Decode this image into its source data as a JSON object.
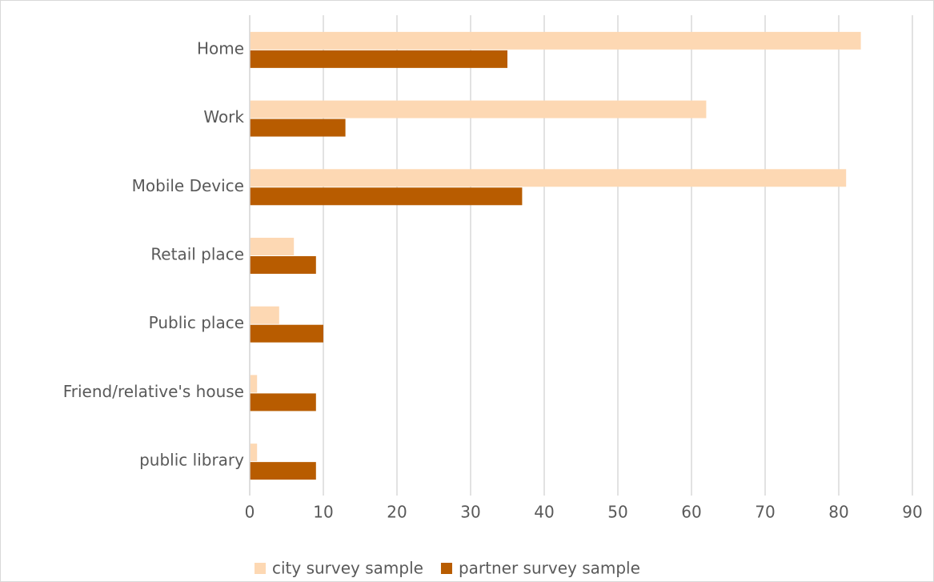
{
  "chart_data": {
    "type": "hbar",
    "categories": [
      "Home",
      "Work",
      "Mobile Device",
      "Retail place",
      "Public place",
      "Friend/relative's house",
      "public library"
    ],
    "series": [
      {
        "name": "city survey sample",
        "color": "#fdd8b3",
        "values": [
          83,
          62,
          81,
          6,
          4,
          1,
          1
        ]
      },
      {
        "name": "partner survey sample",
        "color": "#b85c00",
        "values": [
          35,
          13,
          37,
          9,
          10,
          9,
          9
        ]
      }
    ],
    "xlim": [
      0,
      90
    ],
    "xticks": [
      0,
      10,
      20,
      30,
      40,
      50,
      60,
      70,
      80,
      90
    ],
    "grid": true,
    "legend": "bottom"
  }
}
